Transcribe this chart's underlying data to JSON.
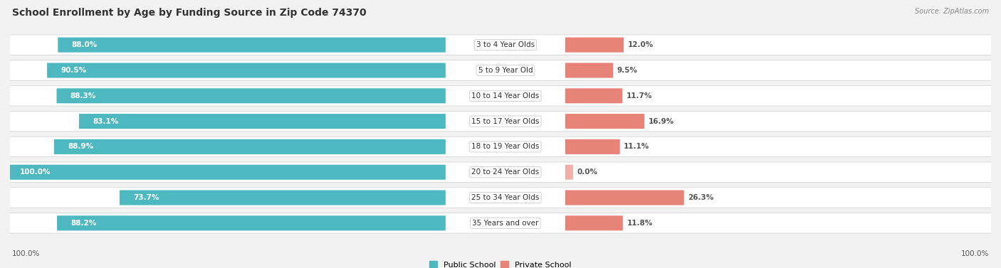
{
  "title": "School Enrollment by Age by Funding Source in Zip Code 74370",
  "source": "Source: ZipAtlas.com",
  "categories": [
    "3 to 4 Year Olds",
    "5 to 9 Year Old",
    "10 to 14 Year Olds",
    "15 to 17 Year Olds",
    "18 to 19 Year Olds",
    "20 to 24 Year Olds",
    "25 to 34 Year Olds",
    "35 Years and over"
  ],
  "public_values": [
    88.0,
    90.5,
    88.3,
    83.1,
    88.9,
    100.0,
    73.7,
    88.2
  ],
  "private_values": [
    12.0,
    9.5,
    11.7,
    16.9,
    11.1,
    0.0,
    26.3,
    11.8
  ],
  "public_color": "#4db8c0",
  "private_color": "#e8837a",
  "private_color_light": "#f0b0aa",
  "public_label": "Public School",
  "private_label": "Private School",
  "bg_color": "#f2f2f2",
  "axis_label_left": "100.0%",
  "axis_label_right": "100.0%",
  "title_fontsize": 10,
  "bar_label_fontsize": 7.5,
  "category_fontsize": 7.5,
  "source_fontsize": 7
}
